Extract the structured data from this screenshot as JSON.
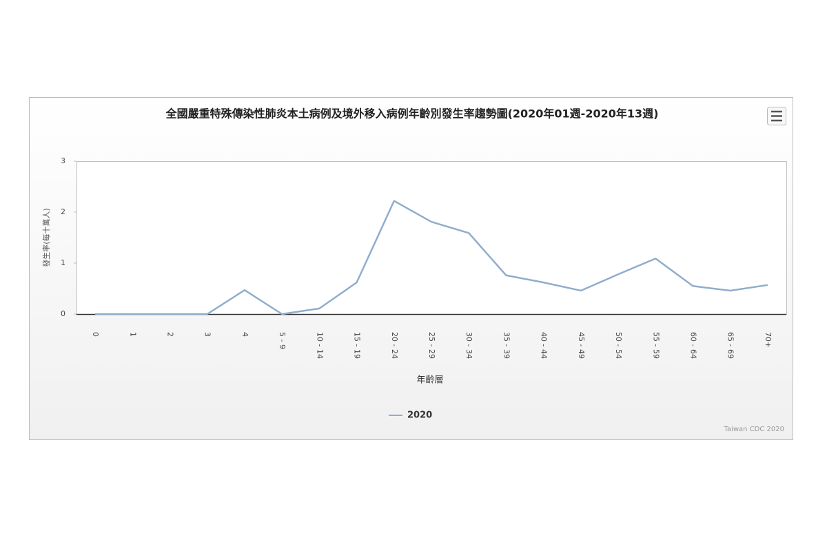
{
  "chart_data": {
    "type": "line",
    "title": "全國嚴重特殊傳染性肺炎本土病例及境外移入病例年齡別發生率趨勢圖(2020年01週-2020年13週)",
    "x_label": "年齡層",
    "y_label": "發生率(每十萬人)",
    "credit": "Taiwan CDC 2020",
    "categories": [
      "0",
      "1",
      "2",
      "3",
      "4",
      "5 - 9",
      "10 - 14",
      "15 - 19",
      "20 - 24",
      "25 - 29",
      "30 - 34",
      "35 - 39",
      "40 - 44",
      "45 - 49",
      "50 - 54",
      "55 - 59",
      "60 - 64",
      "65 - 69",
      "70+"
    ],
    "series": [
      {
        "name": "2020",
        "color": "#8fadcc",
        "values": [
          0,
          0,
          0,
          0,
          0.47,
          0,
          0.11,
          0.62,
          2.22,
          1.81,
          1.59,
          0.76,
          0.62,
          0.46,
          0.78,
          1.09,
          0.55,
          0.46,
          0.57
        ]
      }
    ],
    "ylim": [
      0,
      3
    ],
    "yticks": [
      0,
      1,
      2,
      3
    ],
    "grid": false
  }
}
